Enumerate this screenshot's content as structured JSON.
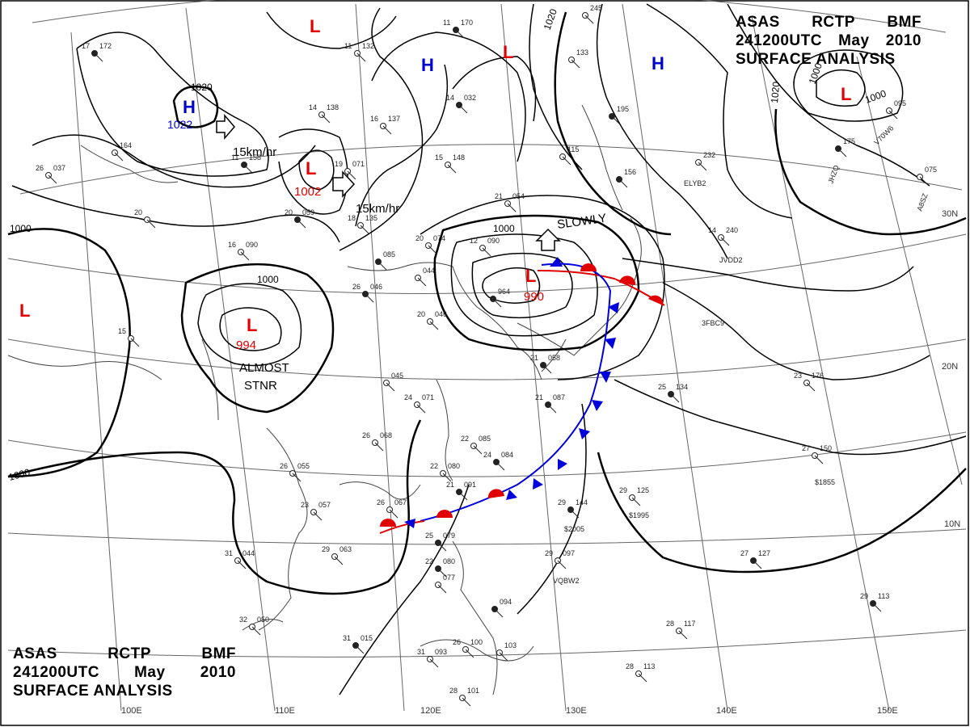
{
  "header": {
    "line1": [
      "ASAS",
      "RCTP",
      "BMF"
    ],
    "line2": [
      "241200UTC",
      "May",
      "2010"
    ],
    "line3": "SURFACE  ANALYSIS"
  },
  "colors": {
    "low": "#e00000",
    "high": "#0000cc",
    "warm_front": "#e00000",
    "cold_front": "#0000dd",
    "isobar": "#000000",
    "grid": "#555555",
    "coast": "#333333"
  },
  "pressure_centers": [
    {
      "kind": "L",
      "value": "",
      "note": "top-left low"
    },
    {
      "kind": "H",
      "value": "1022",
      "note": "northwest high"
    },
    {
      "kind": "L",
      "value": "1002",
      "note": "north china low"
    },
    {
      "kind": "L",
      "value": "",
      "note": "north low"
    },
    {
      "kind": "H",
      "value": "",
      "note": "north high"
    },
    {
      "kind": "L",
      "value": "",
      "note": "north low 2"
    },
    {
      "kind": "H",
      "value": "",
      "note": "northeast high"
    },
    {
      "kind": "L",
      "value": "",
      "note": "northeast low"
    },
    {
      "kind": "L",
      "value": "990",
      "note": "east china sea low"
    },
    {
      "kind": "L",
      "value": "994",
      "note": "southwest low"
    },
    {
      "kind": "L",
      "value": "",
      "note": "far west low"
    }
  ],
  "motion_labels": {
    "nw_high": "15km/hr",
    "china_low": "15km/hr",
    "ecs_low": "SLOWLY",
    "sw_low_line1": "ALMOST",
    "sw_low_line2": "STNR"
  },
  "isobar_labels": [
    "1020",
    "1020",
    "1020",
    "1000",
    "1000",
    "1000",
    "1000",
    "1000",
    "1000"
  ],
  "latitude_labels": [
    "30N",
    "20N",
    "10N"
  ],
  "longitude_labels": [
    "100E",
    "110E",
    "120E",
    "130E",
    "140E",
    "150E"
  ],
  "ship_ids": [
    "ELYB2",
    "JVDD2",
    "3FBC9",
    "V70W6",
    "JHZQ",
    "A8SZ",
    "$1855",
    "$1995",
    "$2005",
    "VQBW2"
  ],
  "stations": [
    {
      "t": "17",
      "p": "172"
    },
    {
      "t": "26",
      "p": "037"
    },
    {
      "t": "20",
      "p": ""
    },
    {
      "t": "11",
      "p": "158"
    },
    {
      "t": "",
      "p": "164"
    },
    {
      "t": "11",
      "p": "132"
    },
    {
      "t": "11",
      "p": "170"
    },
    {
      "t": "14",
      "p": "138"
    },
    {
      "t": "16",
      "p": "137"
    },
    {
      "t": "14",
      "p": "032"
    },
    {
      "t": "19",
      "p": "071"
    },
    {
      "t": "15",
      "p": "148"
    },
    {
      "t": "20",
      "p": "059"
    },
    {
      "t": "18",
      "p": "135"
    },
    {
      "t": "16",
      "p": "090"
    },
    {
      "t": "",
      "p": "085"
    },
    {
      "t": "21",
      "p": "054"
    },
    {
      "t": "20",
      "p": "074"
    },
    {
      "t": "26",
      "p": "046"
    },
    {
      "t": "",
      "p": "044"
    },
    {
      "t": "12",
      "p": "090"
    },
    {
      "t": "",
      "p": "964"
    },
    {
      "t": "20",
      "p": "046"
    },
    {
      "t": "15",
      "p": ""
    },
    {
      "t": "21",
      "p": "058"
    },
    {
      "t": "",
      "p": "045"
    },
    {
      "t": "24",
      "p": "071"
    },
    {
      "t": "21",
      "p": "087"
    },
    {
      "t": "26",
      "p": "068"
    },
    {
      "t": "22",
      "p": "085"
    },
    {
      "t": "24",
      "p": "084"
    },
    {
      "t": "22",
      "p": "080"
    },
    {
      "t": "26",
      "p": "055"
    },
    {
      "t": "21",
      "p": "091"
    },
    {
      "t": "23",
      "p": "057"
    },
    {
      "t": "26",
      "p": "067"
    },
    {
      "t": "25",
      "p": "079"
    },
    {
      "t": "29",
      "p": "063"
    },
    {
      "t": "31",
      "p": "044"
    },
    {
      "t": "22",
      "p": "080"
    },
    {
      "t": "",
      "p": "077"
    },
    {
      "t": "32",
      "p": "050"
    },
    {
      "t": "31",
      "p": "015"
    },
    {
      "t": "31",
      "p": "093"
    },
    {
      "t": "26",
      "p": "100"
    },
    {
      "t": "",
      "p": "094"
    },
    {
      "t": "",
      "p": "103"
    },
    {
      "t": "28",
      "p": "101"
    },
    {
      "t": "29",
      "p": "144"
    },
    {
      "t": "29",
      "p": "097"
    },
    {
      "t": "29",
      "p": "125"
    },
    {
      "t": "25",
      "p": "134"
    },
    {
      "t": "23",
      "p": "176"
    },
    {
      "t": "27",
      "p": "150"
    },
    {
      "t": "27",
      "p": "127"
    },
    {
      "t": "28",
      "p": "117"
    },
    {
      "t": "28",
      "p": "113"
    },
    {
      "t": "29",
      "p": "113"
    },
    {
      "t": "14",
      "p": "240"
    },
    {
      "t": "",
      "p": "232"
    },
    {
      "t": "",
      "p": "175"
    },
    {
      "t": "",
      "p": "095"
    },
    {
      "t": "",
      "p": "075"
    },
    {
      "t": "",
      "p": "195"
    },
    {
      "t": "",
      "p": "133"
    },
    {
      "t": "",
      "p": "245"
    },
    {
      "t": "",
      "p": "156"
    },
    {
      "t": "",
      "p": "115"
    }
  ]
}
